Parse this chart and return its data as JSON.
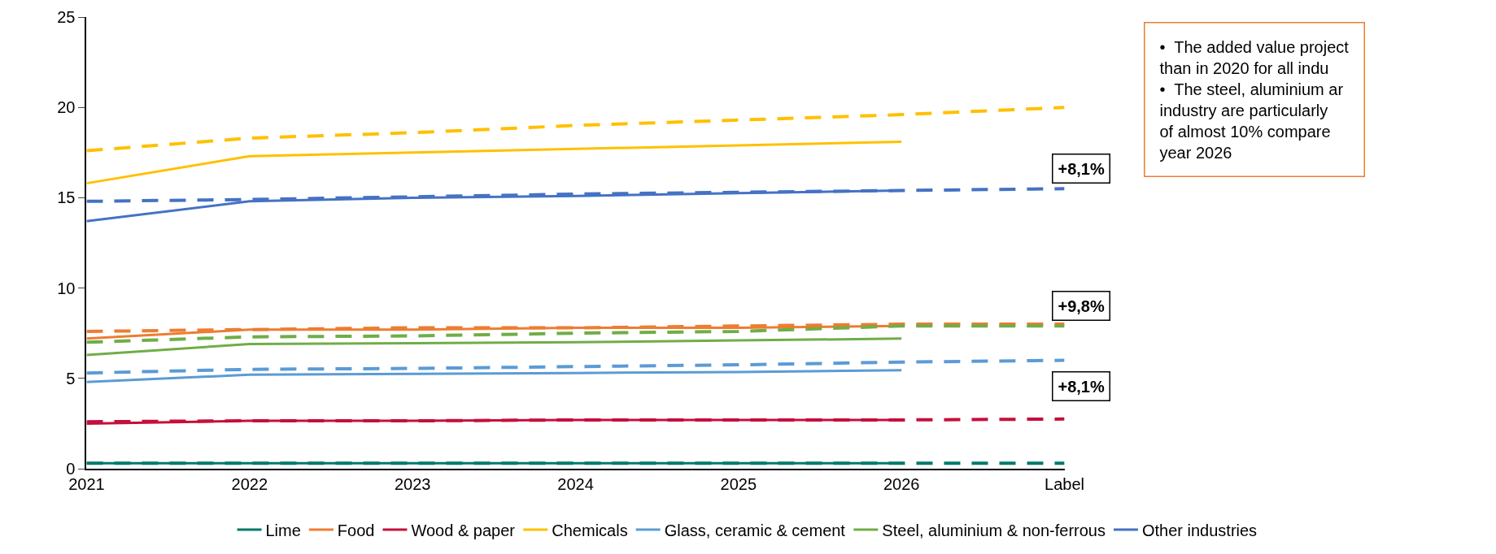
{
  "chart_data": {
    "type": "line",
    "categories": [
      "2021",
      "2022",
      "2023",
      "2024",
      "2025",
      "2026",
      "Label"
    ],
    "ylim": [
      0,
      25
    ],
    "yticks": [
      0,
      5,
      10,
      15,
      20,
      25
    ],
    "legend": "bottom",
    "marker": "none",
    "series": [
      {
        "name": "Lime",
        "color": "#00796b",
        "line_style": "solid",
        "values": [
          0.3,
          0.3,
          0.3,
          0.3,
          0.3,
          0.3,
          null
        ]
      },
      {
        "name": "Food",
        "color": "#ed7d31",
        "line_style": "solid",
        "values": [
          7.2,
          7.7,
          7.7,
          7.8,
          7.8,
          7.9,
          null
        ]
      },
      {
        "name": "Wood & paper",
        "color": "#c50f3c",
        "line_style": "solid",
        "values": [
          2.5,
          2.65,
          2.65,
          2.7,
          2.7,
          2.7,
          null
        ]
      },
      {
        "name": "Chemicals",
        "color": "#ffc000",
        "line_style": "solid",
        "values": [
          15.8,
          17.3,
          17.5,
          17.7,
          17.9,
          18.1,
          null
        ]
      },
      {
        "name": "Glass, ceramic & cement",
        "color": "#5b9bd5",
        "line_style": "solid",
        "values": [
          4.8,
          5.2,
          5.25,
          5.3,
          5.35,
          5.45,
          null
        ]
      },
      {
        "name": "Steel, aluminium & non-ferrous",
        "color": "#70ad47",
        "line_style": "solid",
        "values": [
          6.3,
          6.9,
          6.95,
          7.0,
          7.1,
          7.2,
          null
        ]
      },
      {
        "name": "Other industries",
        "color": "#4472c4",
        "line_style": "solid",
        "values": [
          13.7,
          14.8,
          15.0,
          15.1,
          15.25,
          15.4,
          null
        ]
      },
      {
        "color": "#00796b",
        "line_style": "dashed",
        "values": [
          0.3,
          0.3,
          0.3,
          0.3,
          0.3,
          0.3,
          0.3
        ]
      },
      {
        "color": "#ed7d31",
        "line_style": "dashed",
        "values": [
          7.6,
          7.7,
          7.8,
          7.8,
          7.9,
          8.0,
          8.0
        ]
      },
      {
        "color": "#c50f3c",
        "line_style": "dashed",
        "values": [
          2.6,
          2.65,
          2.65,
          2.7,
          2.7,
          2.7,
          2.75
        ]
      },
      {
        "color": "#ffc000",
        "line_style": "dashed",
        "values": [
          17.6,
          18.3,
          18.6,
          19.0,
          19.3,
          19.6,
          20.0
        ]
      },
      {
        "color": "#5b9bd5",
        "line_style": "dashed",
        "values": [
          5.3,
          5.5,
          5.55,
          5.65,
          5.75,
          5.9,
          6.0
        ]
      },
      {
        "color": "#70ad47",
        "line_style": "dashed",
        "values": [
          7.0,
          7.3,
          7.35,
          7.5,
          7.6,
          7.9,
          7.9
        ]
      },
      {
        "color": "#4472c4",
        "line_style": "dashed",
        "values": [
          14.8,
          14.9,
          15.05,
          15.2,
          15.3,
          15.4,
          15.5
        ]
      }
    ],
    "annotations": [
      "+8,1%",
      "+9,8%",
      "+8,1%",
      "•  The added value project\nthan in 2020 for all indu\n•  The steel, aluminium ar\nindustry are particularly\nof almost 10% compare\nyear 2026"
    ]
  }
}
